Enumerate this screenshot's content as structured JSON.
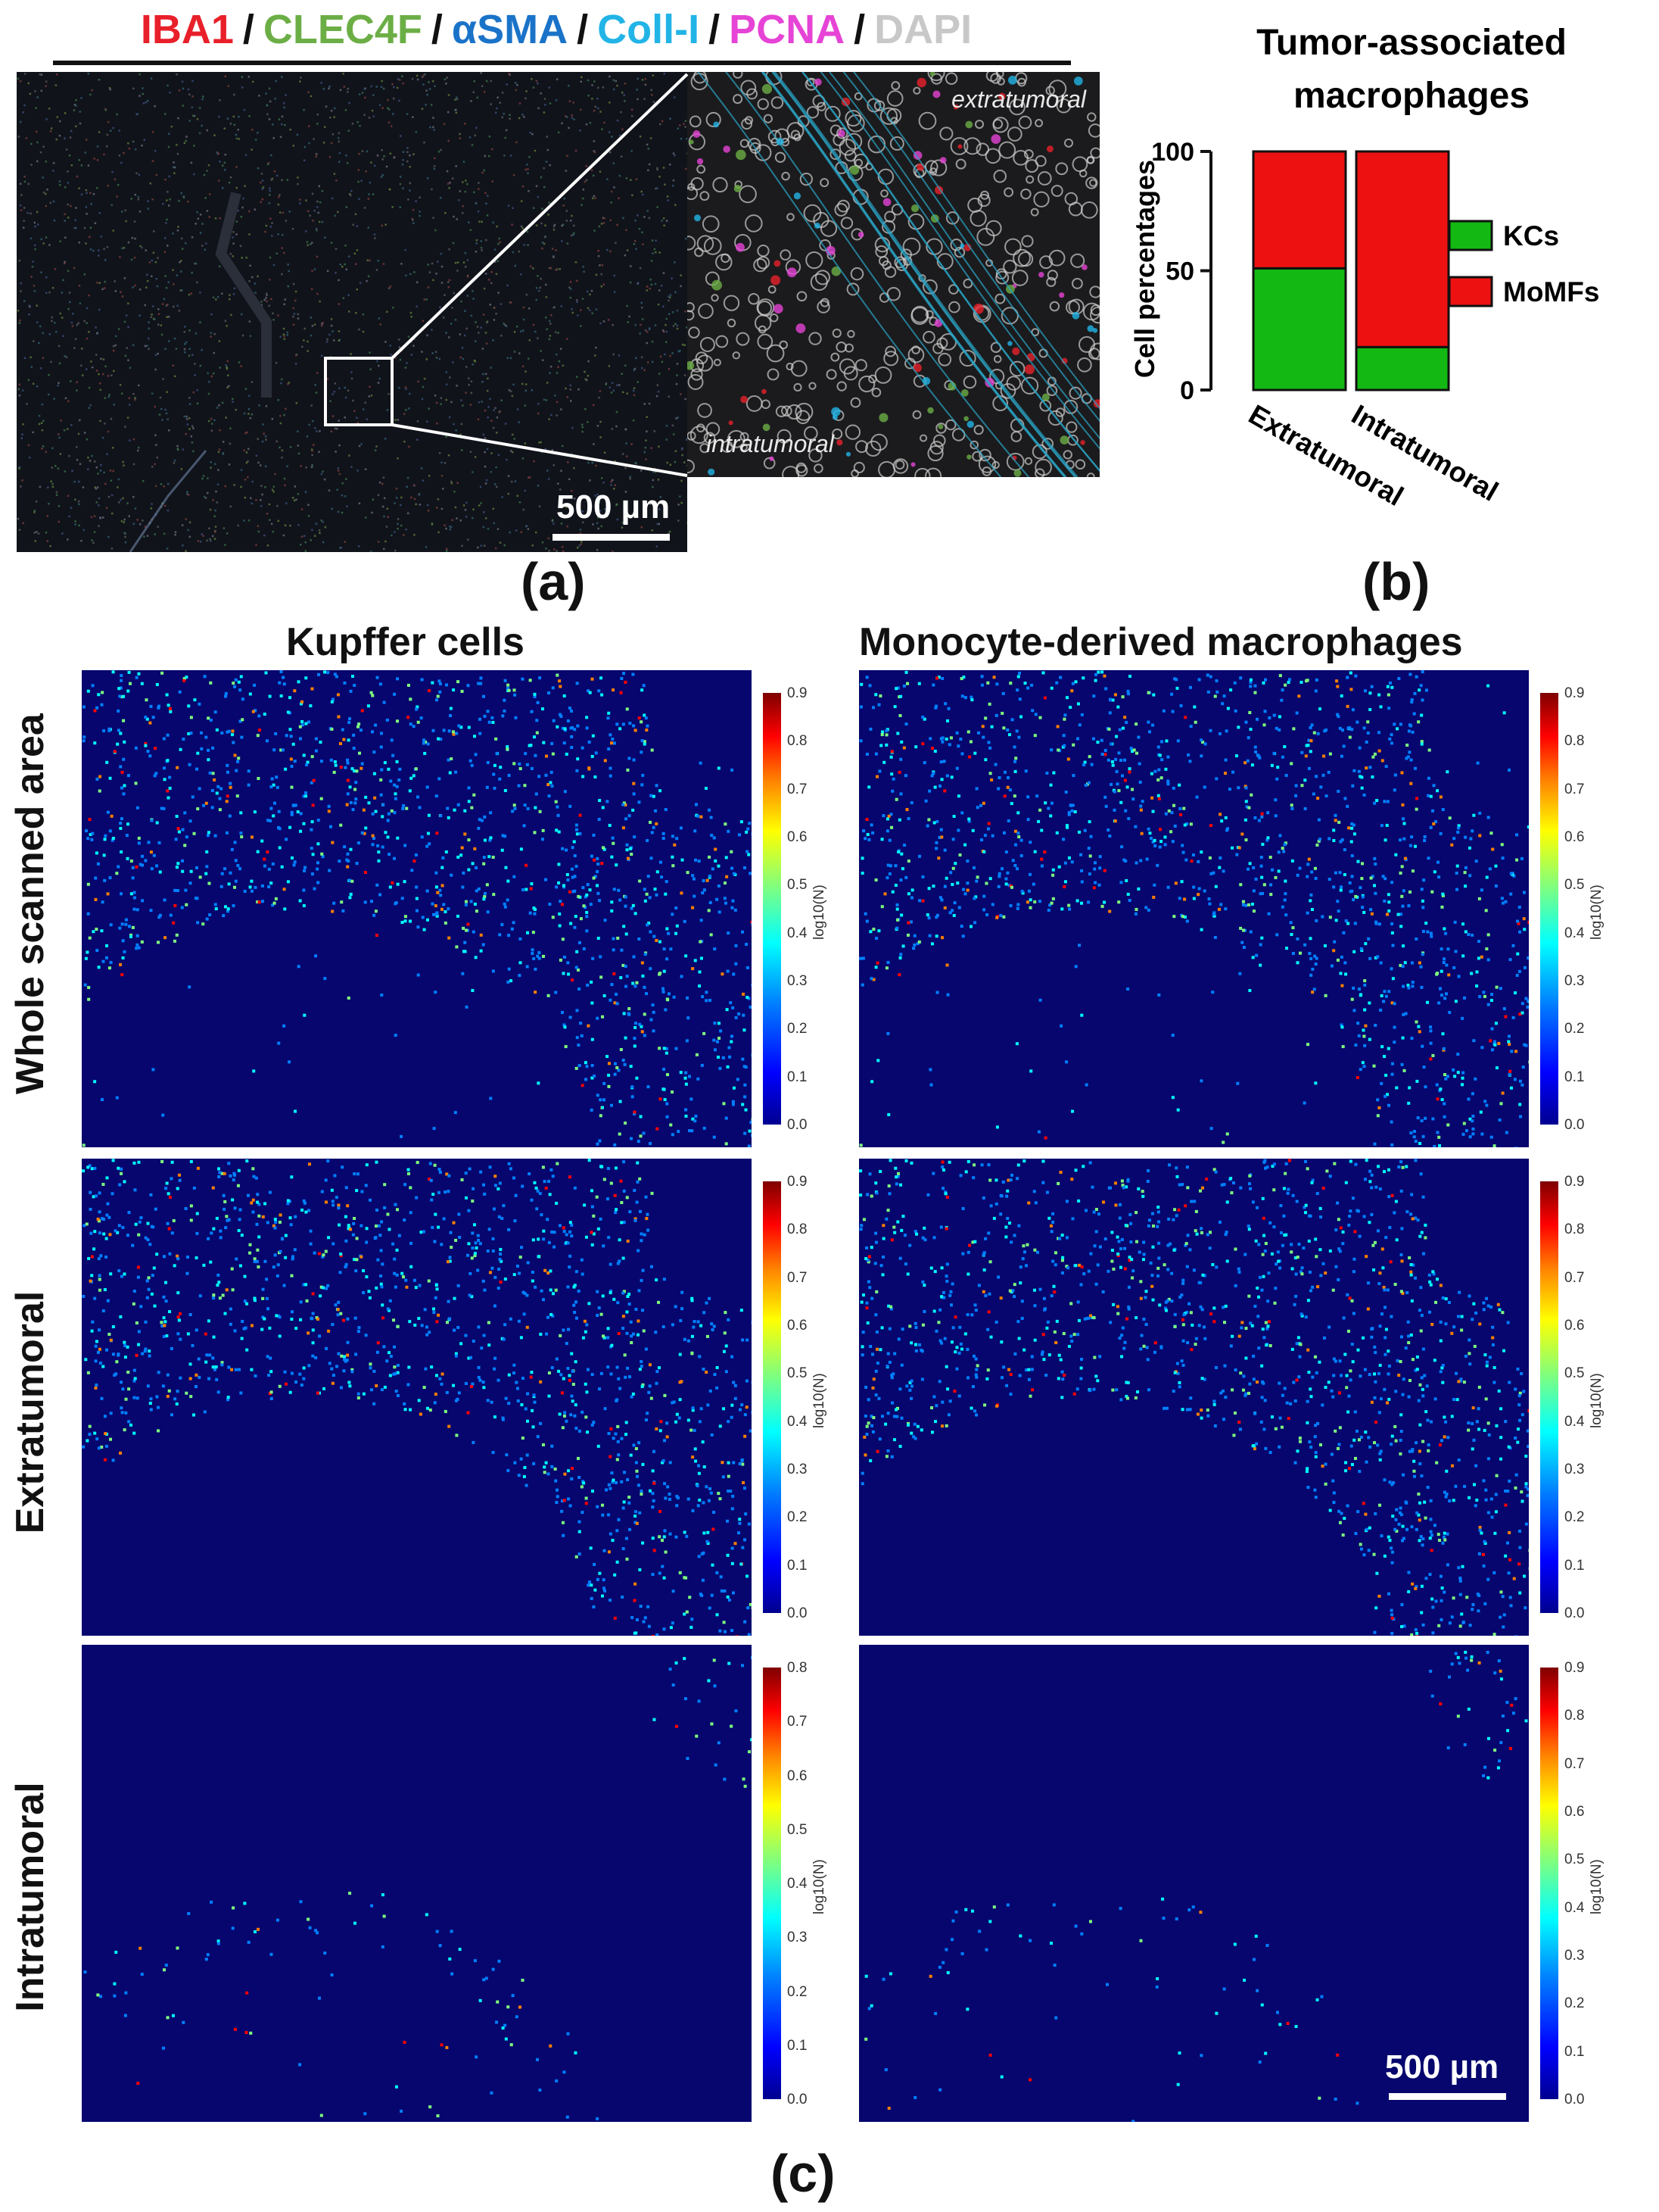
{
  "markers": [
    {
      "label": "IBA1",
      "color": "#e8202a"
    },
    {
      "label": "CLEC4F",
      "color": "#6cae46"
    },
    {
      "label": "αSMA",
      "color": "#1a73c8"
    },
    {
      "label": "Coll-I",
      "color": "#22b4e6"
    },
    {
      "label": "PCNA",
      "color": "#e644d6"
    },
    {
      "label": "DAPI",
      "color": "#c8c8c8"
    }
  ],
  "separator": "/",
  "panel_a": {
    "zoom_top_label": "extratumoral",
    "zoom_bottom_label": "intratumoral",
    "scale_label": "500 µm",
    "letter": "(a)"
  },
  "panel_b": {
    "letter": "(b)"
  },
  "panel_c": {
    "letter": "(c)",
    "col_titles": [
      "Kupffer cells",
      "Monocyte-derived macrophages"
    ],
    "row_labels": [
      "Whole scanned area",
      "Extratumoral",
      "Intratumoral"
    ],
    "colorbar_title": "log10(N)",
    "colorbar_ticks_09": [
      "0.9",
      "0.8",
      "0.7",
      "0.6",
      "0.5",
      "0.4",
      "0.3",
      "0.2",
      "0.1",
      "0.0"
    ],
    "colorbar_ticks_08": [
      "0.8",
      "0.7",
      "0.6",
      "0.5",
      "0.4",
      "0.3",
      "0.2",
      "0.1",
      "0.0"
    ],
    "scale_label": "500 µm"
  },
  "chart_data": [
    {
      "type": "bar",
      "stacked": true,
      "title": "Tumor-associated macrophages",
      "ylabel": "Cell percentages",
      "xlabel": "",
      "ylim": [
        0,
        100
      ],
      "yticks": [
        "0",
        "50",
        "100"
      ],
      "categories": [
        "Extratumoral",
        "Intratumoral"
      ],
      "series": [
        {
          "name": "KCs",
          "color": "#13b813",
          "values": [
            51,
            18
          ]
        },
        {
          "name": "MoMFs",
          "color": "#ee1111",
          "values": [
            49,
            82
          ]
        }
      ],
      "legend": "right"
    },
    {
      "type": "heatmap",
      "panel": "Kupffer cells - Whole scanned area",
      "colorbar_range": [
        0.0,
        0.9
      ]
    },
    {
      "type": "heatmap",
      "panel": "Monocyte-derived macrophages - Whole scanned area",
      "colorbar_range": [
        0.0,
        0.9
      ]
    },
    {
      "type": "heatmap",
      "panel": "Kupffer cells - Extratumoral",
      "colorbar_range": [
        0.0,
        0.9
      ]
    },
    {
      "type": "heatmap",
      "panel": "Monocyte-derived macrophages - Extratumoral",
      "colorbar_range": [
        0.0,
        0.9
      ]
    },
    {
      "type": "heatmap",
      "panel": "Kupffer cells - Intratumoral",
      "colorbar_range": [
        0.0,
        0.8
      ]
    },
    {
      "type": "heatmap",
      "panel": "Monocyte-derived macrophages - Intratumoral",
      "colorbar_range": [
        0.0,
        0.9
      ]
    }
  ]
}
